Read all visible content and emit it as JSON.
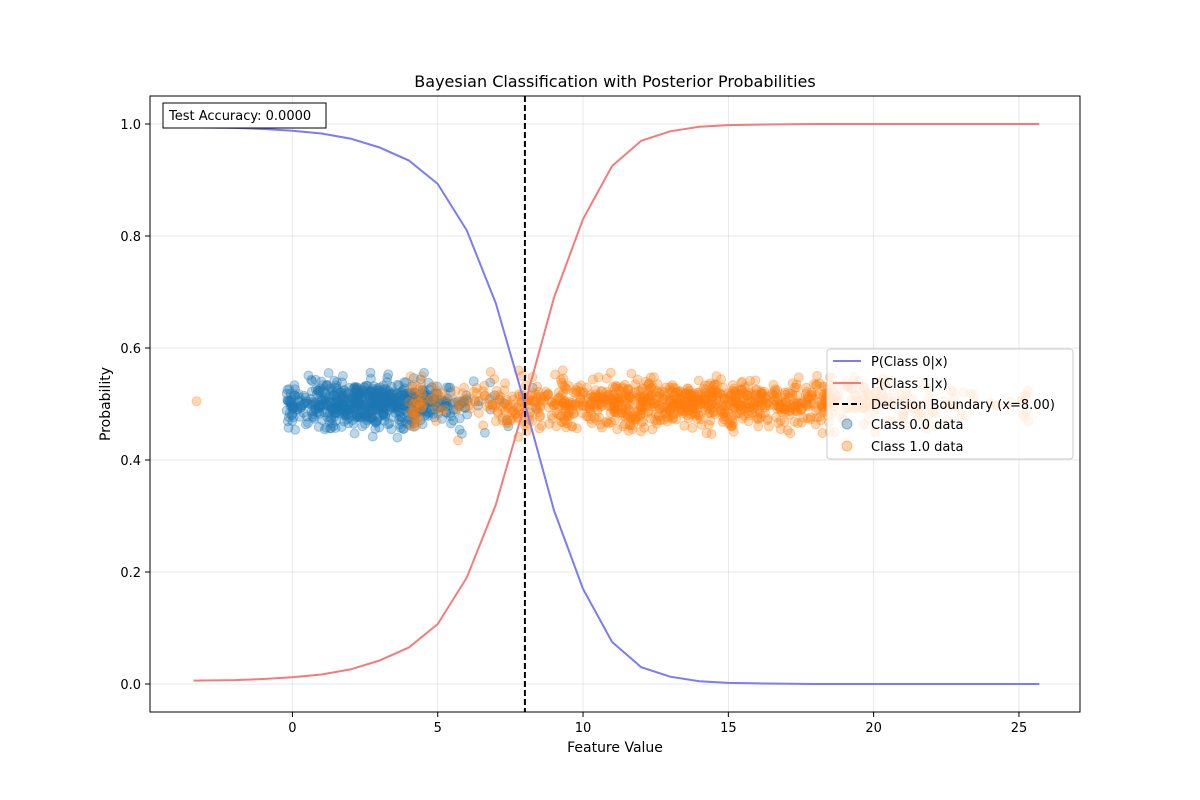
{
  "chart_data": {
    "type": "line",
    "title": "Bayesian Classification with Posterior Probabilities",
    "xlabel": "Feature Value",
    "ylabel": "Probability",
    "xlim": [
      -4.9,
      27.1
    ],
    "ylim": [
      -0.05,
      1.05
    ],
    "xticks": [
      0,
      5,
      10,
      15,
      20,
      25
    ],
    "yticks": [
      0.0,
      0.2,
      0.4,
      0.6,
      0.8,
      1.0
    ],
    "xtick_labels": [
      "0",
      "5",
      "10",
      "15",
      "20",
      "25"
    ],
    "ytick_labels": [
      "0.0",
      "0.2",
      "0.4",
      "0.6",
      "0.8",
      "1.0"
    ],
    "grid": true,
    "legend_position": "center-right",
    "annotation": "Test Accuracy: 0.0000",
    "decision_boundary": {
      "x": 8.0,
      "label": "Decision Boundary (x=8.00)",
      "color": "#000000"
    },
    "series": [
      {
        "name": "P(Class 0|x)",
        "color": "#7b7bf5",
        "x": [
          -3.4,
          -2,
          -1,
          0,
          1,
          2,
          3,
          4,
          5,
          6,
          7,
          8,
          9,
          10,
          11,
          12,
          13,
          14,
          15,
          16,
          18,
          20,
          22,
          25.7
        ],
        "values": [
          0.994,
          0.993,
          0.991,
          0.988,
          0.983,
          0.974,
          0.958,
          0.935,
          0.893,
          0.81,
          0.68,
          0.5,
          0.31,
          0.17,
          0.075,
          0.03,
          0.013,
          0.005,
          0.002,
          0.001,
          0.0,
          0.0,
          0.0,
          0.0
        ]
      },
      {
        "name": "P(Class 1|x)",
        "color": "#f57b7b",
        "x": [
          -3.4,
          -2,
          -1,
          0,
          1,
          2,
          3,
          4,
          5,
          6,
          7,
          8,
          9,
          10,
          11,
          12,
          13,
          14,
          15,
          16,
          18,
          20,
          22,
          25.7
        ],
        "values": [
          0.006,
          0.007,
          0.009,
          0.012,
          0.017,
          0.026,
          0.042,
          0.065,
          0.107,
          0.19,
          0.32,
          0.5,
          0.69,
          0.83,
          0.925,
          0.97,
          0.987,
          0.995,
          0.998,
          0.999,
          1.0,
          1.0,
          1.0,
          1.0
        ]
      }
    ],
    "scatter": [
      {
        "name": "Class 0.0 data",
        "color": "#1f77b4",
        "x_range": [
          -0.2,
          9.0
        ],
        "center": 2.8,
        "spread": 1.7,
        "y_center": 0.5,
        "y_spread": 0.02,
        "count": 700
      },
      {
        "name": "Class 1.0 data",
        "color": "#ff7f0e",
        "x_range": [
          4.0,
          25.5
        ],
        "center": 13.5,
        "spread": 4.5,
        "y_center": 0.5,
        "y_spread": 0.02,
        "count": 1100,
        "outliers": [
          [
            -3.3,
            0.505
          ],
          [
            5.7,
            0.435
          ],
          [
            9.3,
            0.56
          ]
        ]
      }
    ]
  }
}
